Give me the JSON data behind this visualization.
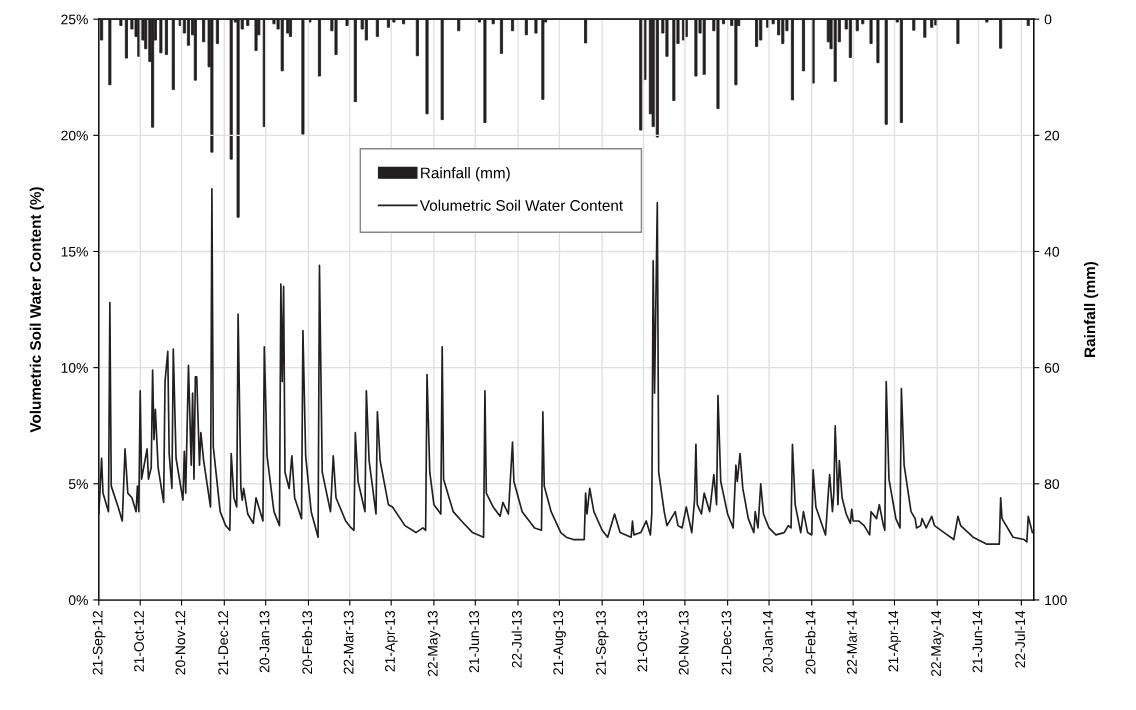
{
  "chart_data": {
    "type": "line",
    "ylabel": "Volumetric Soil Water Content (%)",
    "y2label": "Rainfall (mm)",
    "xlim": [
      "2012-09-21",
      "2014-07-31"
    ],
    "xticks": [
      {
        "value": "2012-09-21",
        "label": "21-Sep-12"
      },
      {
        "value": "2012-10-21",
        "label": "21-Oct-12"
      },
      {
        "value": "2012-11-20",
        "label": "20-Nov-12"
      },
      {
        "value": "2012-12-21",
        "label": "21-Dec-12"
      },
      {
        "value": "2013-01-20",
        "label": "20-Jan-13"
      },
      {
        "value": "2013-02-20",
        "label": "20-Feb-13"
      },
      {
        "value": "2013-03-22",
        "label": "22-Mar-13"
      },
      {
        "value": "2013-04-21",
        "label": "21-Apr-13"
      },
      {
        "value": "2013-05-22",
        "label": "22-May-13"
      },
      {
        "value": "2013-06-21",
        "label": "21-Jun-13"
      },
      {
        "value": "2013-07-22",
        "label": "22-Jul-13"
      },
      {
        "value": "2013-08-21",
        "label": "21-Aug-13"
      },
      {
        "value": "2013-09-21",
        "label": "21-Sep-13"
      },
      {
        "value": "2013-10-21",
        "label": "21-Oct-13"
      },
      {
        "value": "2013-11-20",
        "label": "20-Nov-13"
      },
      {
        "value": "2013-12-21",
        "label": "21-Dec-13"
      },
      {
        "value": "2014-01-20",
        "label": "20-Jan-14"
      },
      {
        "value": "2014-02-20",
        "label": "20-Feb-14"
      },
      {
        "value": "2014-03-22",
        "label": "22-Mar-14"
      },
      {
        "value": "2014-04-21",
        "label": "21-Apr-14"
      },
      {
        "value": "2014-05-22",
        "label": "22-May-14"
      },
      {
        "value": "2014-06-21",
        "label": "21-Jun-14"
      },
      {
        "value": "2014-07-22",
        "label": "22-Jul-14"
      }
    ],
    "ylim": [
      0,
      25
    ],
    "yticks": [
      {
        "value": 0,
        "label": "0%"
      },
      {
        "value": 5,
        "label": "5%"
      },
      {
        "value": 10,
        "label": "10%"
      },
      {
        "value": 15,
        "label": "15%"
      },
      {
        "value": 20,
        "label": "20%"
      },
      {
        "value": 25,
        "label": "25%"
      }
    ],
    "y2lim": [
      100,
      0
    ],
    "y2ticks": [
      0,
      20,
      40,
      60,
      80,
      100
    ],
    "grid": true,
    "legend": "top",
    "series": [
      {
        "name": "Rainfall (mm)",
        "type": "bar",
        "axis": "y2",
        "color": "#231f20",
        "x": [
          "2012-09-23",
          "2012-09-29",
          "2012-10-07",
          "2012-10-11",
          "2012-10-15",
          "2012-10-18",
          "2012-10-20",
          "2012-10-23",
          "2012-10-25",
          "2012-10-28",
          "2012-10-30",
          "2012-11-01",
          "2012-11-05",
          "2012-11-09",
          "2012-11-14",
          "2012-11-19",
          "2012-11-22",
          "2012-11-25",
          "2012-11-28",
          "2012-11-30",
          "2012-12-06",
          "2012-12-10",
          "2012-12-12",
          "2012-12-16",
          "2012-12-26",
          "2012-12-29",
          "2012-12-31",
          "2013-01-03",
          "2013-01-07",
          "2013-01-13",
          "2013-01-15",
          "2013-01-19",
          "2013-01-26",
          "2013-01-29",
          "2013-02-01",
          "2013-02-05",
          "2013-02-07",
          "2013-02-16",
          "2013-02-21",
          "2013-02-28",
          "2013-03-09",
          "2013-03-12",
          "2013-03-20",
          "2013-03-26",
          "2013-03-31",
          "2013-04-03",
          "2013-04-11",
          "2013-04-19",
          "2013-04-23",
          "2013-04-30",
          "2013-05-10",
          "2013-05-17",
          "2013-05-28",
          "2013-06-09",
          "2013-06-24",
          "2013-06-28",
          "2013-07-04",
          "2013-07-10",
          "2013-07-18",
          "2013-07-28",
          "2013-08-04",
          "2013-08-09",
          "2013-08-11",
          "2013-09-09",
          "2013-10-19",
          "2013-10-22",
          "2013-10-26",
          "2013-10-28",
          "2013-10-31",
          "2013-11-04",
          "2013-11-07",
          "2013-11-12",
          "2013-11-15",
          "2013-11-19",
          "2013-11-21",
          "2013-11-28",
          "2013-12-01",
          "2013-12-04",
          "2013-12-11",
          "2013-12-14",
          "2013-12-18",
          "2013-12-24",
          "2013-12-27",
          "2013-12-29",
          "2014-01-11",
          "2014-01-14",
          "2014-01-19",
          "2014-01-23",
          "2014-01-27",
          "2014-01-30",
          "2014-02-02",
          "2014-02-06",
          "2014-02-14",
          "2014-02-21",
          "2014-03-04",
          "2014-03-06",
          "2014-03-09",
          "2014-03-12",
          "2014-03-17",
          "2014-03-20",
          "2014-03-25",
          "2014-03-29",
          "2014-04-04",
          "2014-04-09",
          "2014-04-15",
          "2014-04-23",
          "2014-04-26",
          "2014-05-05",
          "2014-05-13",
          "2014-05-18",
          "2014-05-21",
          "2014-06-06",
          "2014-06-27",
          "2014-07-07",
          "2014-07-27"
        ],
        "values": [
          3.6,
          11.3,
          1.1,
          6.7,
          1.7,
          3.0,
          6.4,
          3.6,
          5.1,
          7.3,
          18.6,
          3.6,
          5.8,
          6.1,
          12.1,
          1.1,
          2.4,
          4.5,
          2.7,
          10.5,
          3.9,
          8.2,
          22.9,
          4.2,
          24.1,
          0.5,
          34.1,
          1.7,
          1.1,
          5.4,
          2.7,
          18.5,
          0.8,
          1.7,
          8.9,
          2.4,
          3.0,
          19.8,
          0.5,
          9.8,
          2.0,
          6.1,
          1.1,
          14.2,
          1.7,
          3.6,
          3.0,
          1.4,
          0.5,
          0.8,
          6.3,
          16.3,
          17.3,
          2.0,
          0.5,
          17.8,
          0.8,
          5.9,
          2.0,
          2.7,
          2.4,
          13.8,
          0.5,
          4.1,
          19.1,
          10.4,
          16.3,
          18.5,
          20.3,
          2.4,
          6.4,
          14.0,
          4.2,
          3.6,
          3.0,
          9.8,
          2.4,
          9.5,
          2.0,
          15.4,
          0.8,
          1.1,
          11.3,
          1.1,
          4.7,
          3.6,
          1.4,
          0.8,
          2.7,
          4.2,
          2.0,
          13.9,
          8.9,
          11.0,
          3.9,
          5.1,
          10.7,
          3.9,
          1.7,
          6.6,
          2.0,
          0.8,
          4.2,
          7.5,
          18.1,
          0.5,
          17.8,
          1.9,
          3.1,
          1.4,
          1.0,
          4.2,
          0.5,
          5.0,
          1.1
        ]
      },
      {
        "name": "Volumetric Soil Water Content",
        "color": "#231f20",
        "x": [
          "2012-09-21",
          "2012-09-23",
          "2012-09-24",
          "2012-09-28",
          "2012-09-29",
          "2012-09-30",
          "2012-10-05",
          "2012-10-08",
          "2012-10-10",
          "2012-10-12",
          "2012-10-15",
          "2012-10-18",
          "2012-10-19",
          "2012-10-20",
          "2012-10-21",
          "2012-10-22",
          "2012-10-26",
          "2012-10-27",
          "2012-10-29",
          "2012-10-30",
          "2012-10-31",
          "2012-11-01",
          "2012-11-03",
          "2012-11-07",
          "2012-11-08",
          "2012-11-10",
          "2012-11-11",
          "2012-11-13",
          "2012-11-14",
          "2012-11-16",
          "2012-11-21",
          "2012-11-22",
          "2012-11-23",
          "2012-11-25",
          "2012-11-27",
          "2012-11-28",
          "2012-11-29",
          "2012-11-30",
          "2012-12-01",
          "2012-12-03",
          "2012-12-04",
          "2012-12-06",
          "2012-12-11",
          "2012-12-12",
          "2012-12-13",
          "2012-12-18",
          "2012-12-22",
          "2012-12-25",
          "2012-12-26",
          "2012-12-28",
          "2012-12-30",
          "2012-12-31",
          "2013-01-02",
          "2013-01-03",
          "2013-01-04",
          "2013-01-07",
          "2013-01-11",
          "2013-01-13",
          "2013-01-15",
          "2013-01-18",
          "2013-01-19",
          "2013-01-21",
          "2013-01-26",
          "2013-01-30",
          "2013-01-31",
          "2013-02-01",
          "2013-02-02",
          "2013-02-03",
          "2013-02-06",
          "2013-02-08",
          "2013-02-10",
          "2013-02-15",
          "2013-02-16",
          "2013-02-18",
          "2013-02-22",
          "2013-02-27",
          "2013-02-28",
          "2013-03-02",
          "2013-03-08",
          "2013-03-10",
          "2013-03-12",
          "2013-03-19",
          "2013-03-23",
          "2013-03-25",
          "2013-03-26",
          "2013-03-28",
          "2013-04-02",
          "2013-04-03",
          "2013-04-05",
          "2013-04-10",
          "2013-04-11",
          "2013-04-13",
          "2013-04-19",
          "2013-04-22",
          "2013-05-01",
          "2013-05-09",
          "2013-05-14",
          "2013-05-16",
          "2013-05-17",
          "2013-05-19",
          "2013-05-22",
          "2013-05-27",
          "2013-05-28",
          "2013-05-29",
          "2013-06-05",
          "2013-06-11",
          "2013-06-19",
          "2013-06-27",
          "2013-06-28",
          "2013-06-29",
          "2013-07-04",
          "2013-07-09",
          "2013-07-11",
          "2013-07-15",
          "2013-07-18",
          "2013-07-19",
          "2013-07-25",
          "2013-08-03",
          "2013-08-08",
          "2013-08-09",
          "2013-08-10",
          "2013-08-15",
          "2013-08-22",
          "2013-08-26",
          "2013-08-31",
          "2013-09-08",
          "2013-09-09",
          "2013-09-10",
          "2013-09-12",
          "2013-09-15",
          "2013-09-21",
          "2013-09-25",
          "2013-09-30",
          "2013-10-04",
          "2013-10-12",
          "2013-10-13",
          "2013-10-14",
          "2013-10-19",
          "2013-10-23",
          "2013-10-26",
          "2013-10-27",
          "2013-10-28",
          "2013-10-29",
          "2013-10-31",
          "2013-11-01",
          "2013-11-05",
          "2013-11-07",
          "2013-11-13",
          "2013-11-15",
          "2013-11-18",
          "2013-11-21",
          "2013-11-25",
          "2013-11-27",
          "2013-11-28",
          "2013-11-29",
          "2013-12-02",
          "2013-12-04",
          "2013-12-08",
          "2013-12-11",
          "2013-12-13",
          "2013-12-14",
          "2013-12-16",
          "2013-12-21",
          "2013-12-25",
          "2013-12-27",
          "2013-12-28",
          "2013-12-30",
          "2014-01-01",
          "2014-01-05",
          "2014-01-09",
          "2014-01-10",
          "2014-01-12",
          "2014-01-14",
          "2014-01-16",
          "2014-01-20",
          "2014-01-25",
          "2014-01-31",
          "2014-02-03",
          "2014-02-05",
          "2014-02-06",
          "2014-02-08",
          "2014-02-12",
          "2014-02-14",
          "2014-02-17",
          "2014-02-20",
          "2014-02-21",
          "2014-02-23",
          "2014-03-02",
          "2014-03-04",
          "2014-03-05",
          "2014-03-07",
          "2014-03-08",
          "2014-03-09",
          "2014-03-11",
          "2014-03-12",
          "2014-03-14",
          "2014-03-17",
          "2014-03-20",
          "2014-03-21",
          "2014-03-22",
          "2014-03-26",
          "2014-03-30",
          "2014-04-03",
          "2014-04-04",
          "2014-04-08",
          "2014-04-10",
          "2014-04-13",
          "2014-04-14",
          "2014-04-15",
          "2014-04-17",
          "2014-04-22",
          "2014-04-25",
          "2014-04-26",
          "2014-04-28",
          "2014-05-03",
          "2014-05-06",
          "2014-05-07",
          "2014-05-10",
          "2014-05-11",
          "2014-05-14",
          "2014-05-18",
          "2014-05-20",
          "2014-05-27",
          "2014-06-03",
          "2014-06-06",
          "2014-06-08",
          "2014-06-17",
          "2014-06-27",
          "2014-07-06",
          "2014-07-07",
          "2014-07-08",
          "2014-07-16",
          "2014-07-24",
          "2014-07-26",
          "2014-07-27",
          "2014-07-30"
        ],
        "values": [
          3.7,
          6.1,
          4.6,
          3.8,
          12.8,
          4.9,
          4.0,
          3.4,
          6.5,
          4.6,
          4.4,
          3.8,
          4.9,
          3.8,
          9.0,
          5.2,
          6.5,
          5.2,
          5.7,
          9.9,
          6.9,
          8.2,
          5.7,
          4.2,
          9.4,
          10.7,
          6.3,
          4.8,
          10.8,
          6.1,
          4.3,
          6.4,
          4.6,
          10.1,
          5.8,
          8.9,
          5.2,
          9.6,
          9.6,
          5.8,
          7.2,
          6.0,
          4.0,
          17.7,
          6.6,
          3.8,
          3.2,
          3.0,
          6.3,
          4.4,
          4.0,
          12.3,
          4.8,
          4.3,
          4.8,
          3.7,
          3.3,
          4.4,
          4.0,
          3.4,
          10.9,
          6.2,
          3.8,
          3.2,
          13.6,
          9.4,
          13.5,
          5.5,
          4.8,
          6.2,
          4.4,
          3.5,
          11.6,
          6.2,
          3.8,
          2.7,
          14.4,
          5.5,
          3.8,
          6.2,
          4.4,
          3.4,
          3.1,
          3.0,
          7.2,
          5.1,
          3.8,
          9.0,
          6.0,
          3.7,
          8.1,
          6.0,
          4.1,
          4.0,
          3.2,
          2.9,
          3.1,
          3.0,
          9.7,
          5.5,
          4.1,
          3.7,
          10.9,
          5.2,
          3.8,
          3.4,
          2.9,
          2.7,
          9.0,
          4.6,
          4.0,
          3.6,
          4.2,
          3.7,
          6.8,
          5.1,
          3.8,
          3.1,
          3.0,
          8.1,
          4.9,
          3.8,
          2.9,
          2.7,
          2.6,
          2.6,
          4.6,
          3.7,
          4.8,
          3.8,
          3.0,
          2.7,
          3.7,
          2.9,
          2.7,
          3.4,
          2.8,
          2.9,
          3.4,
          2.8,
          3.7,
          14.6,
          8.9,
          17.1,
          5.5,
          3.8,
          3.2,
          3.8,
          3.2,
          3.1,
          4.0,
          2.9,
          4.3,
          6.7,
          4.1,
          3.7,
          4.6,
          3.8,
          5.4,
          4.1,
          8.8,
          5.1,
          3.7,
          3.1,
          5.8,
          5.1,
          6.3,
          4.8,
          3.5,
          2.9,
          3.8,
          3.1,
          5.0,
          3.7,
          3.1,
          2.8,
          2.9,
          3.2,
          3.1,
          6.7,
          4.1,
          2.9,
          3.8,
          2.9,
          2.8,
          5.6,
          4.0,
          2.8,
          4.6,
          5.4,
          3.8,
          4.6,
          7.5,
          4.1,
          6.0,
          4.4,
          3.7,
          3.3,
          3.9,
          3.4,
          3.4,
          3.2,
          2.8,
          3.8,
          3.5,
          4.1,
          3.2,
          3.0,
          9.4,
          5.2,
          3.5,
          3.1,
          9.1,
          5.8,
          3.8,
          3.5,
          3.1,
          3.2,
          3.5,
          3.1,
          3.6,
          3.2,
          2.9,
          2.6,
          3.6,
          3.2,
          2.7,
          2.4,
          2.4,
          4.4,
          3.5,
          2.7,
          2.6,
          2.5,
          3.6,
          2.9
        ]
      }
    ]
  }
}
